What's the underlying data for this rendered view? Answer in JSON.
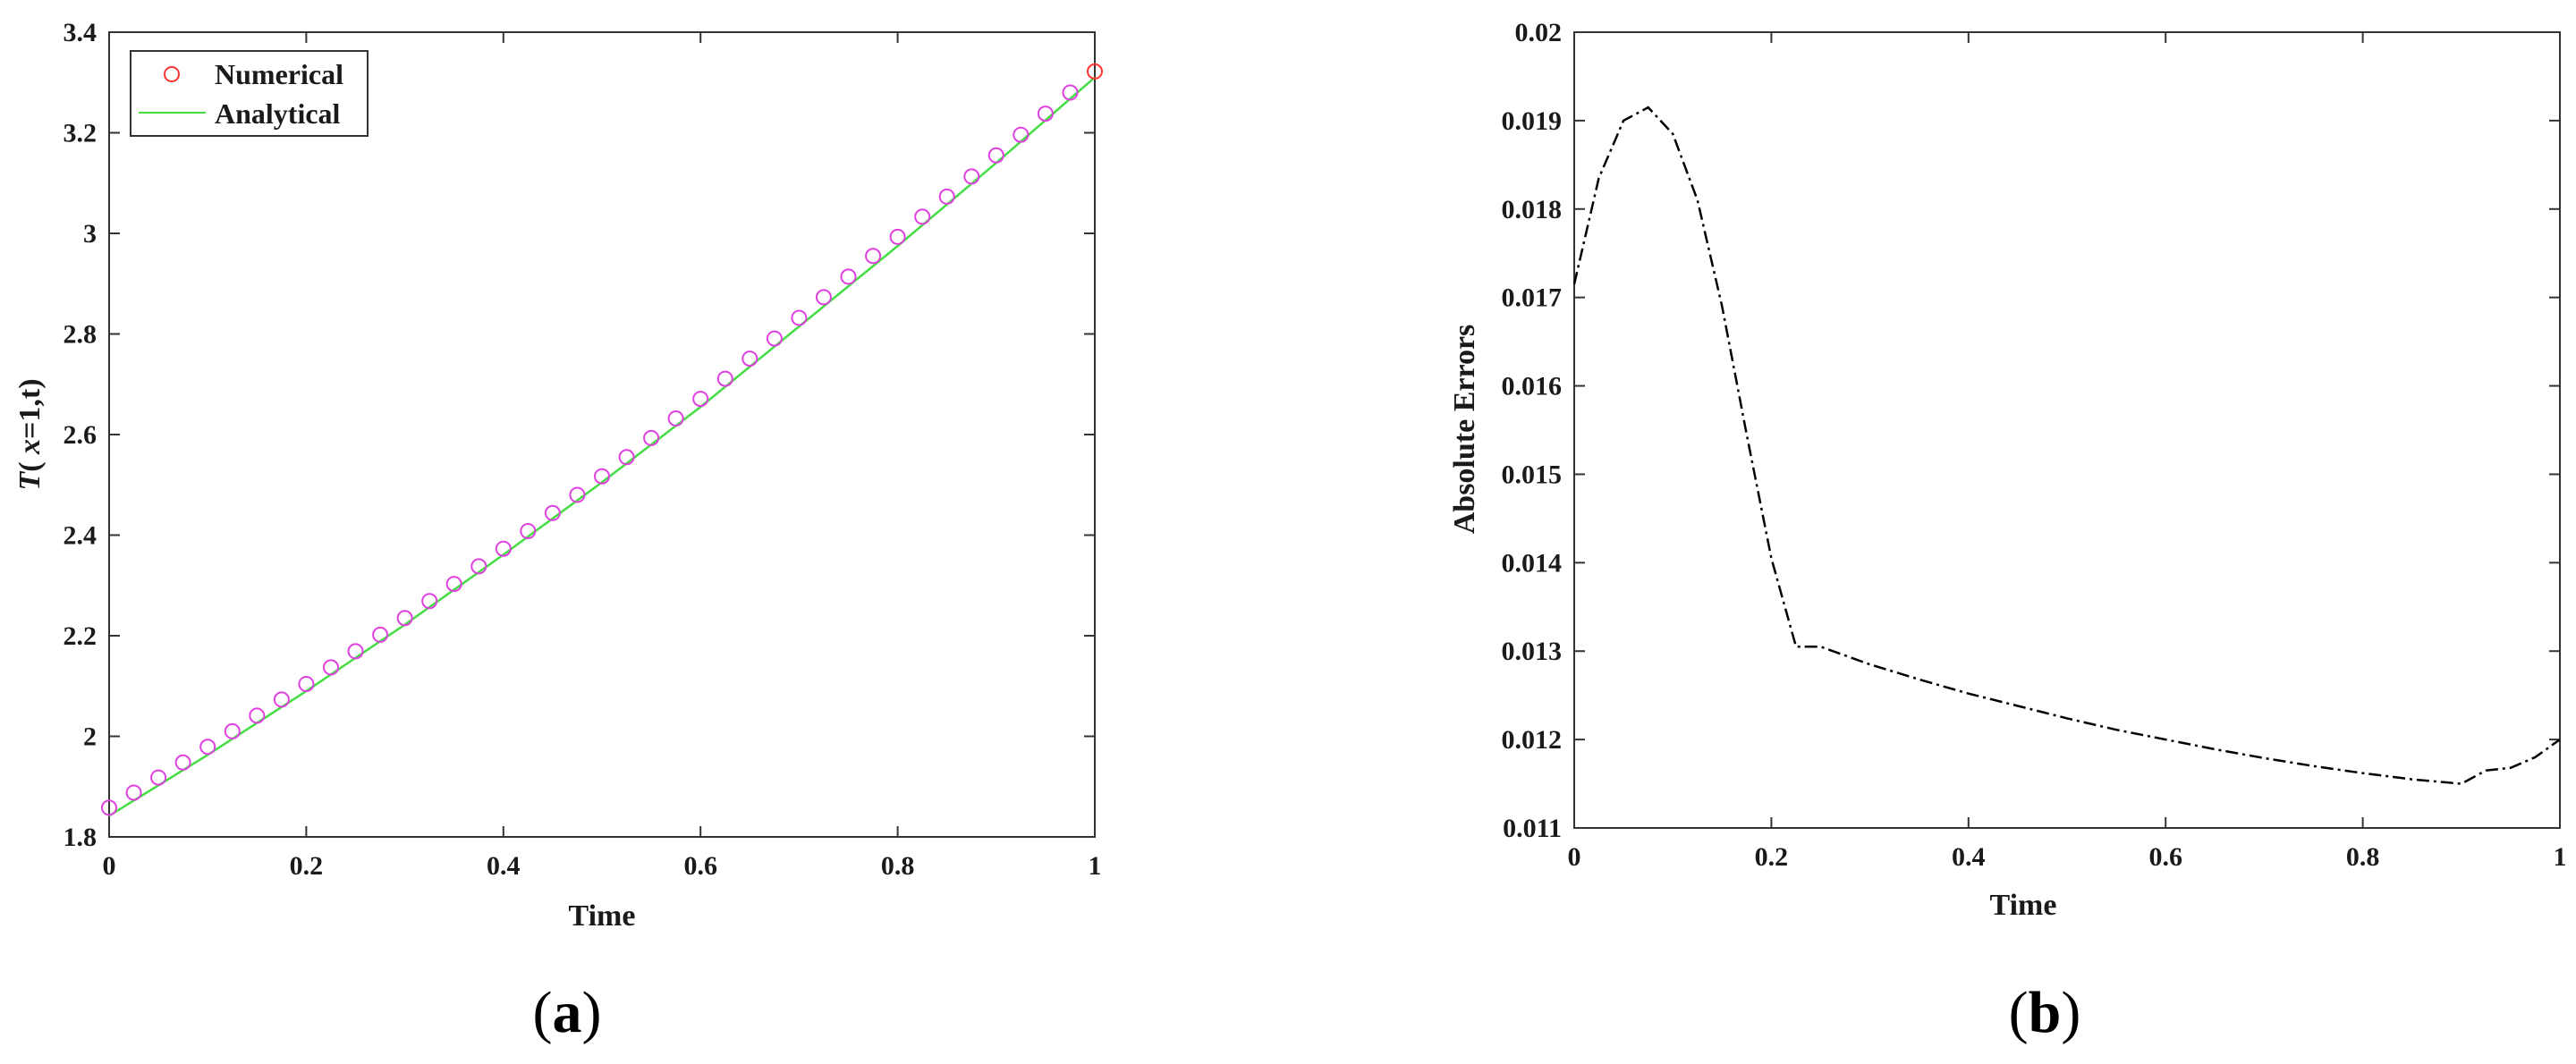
{
  "chart_data": [
    {
      "type": "line",
      "panel": "(a)",
      "panel_parts": [
        "(",
        "a",
        ")"
      ],
      "xlabel": "Time",
      "ylabel": {
        "italic": "T",
        "rest1": "( ",
        "italic2": "x",
        "rest2": "=1,t)"
      },
      "xlim": [
        0,
        1
      ],
      "ylim": [
        1.8,
        3.4
      ],
      "xticks": [
        0,
        0.2,
        0.4,
        0.6,
        0.8,
        1
      ],
      "xtick_labels": [
        "0",
        "0.2",
        "0.4",
        "0.6",
        "0.8",
        "1"
      ],
      "yticks": [
        1.8,
        2,
        2.2,
        2.4,
        2.6,
        2.8,
        3,
        3.2,
        3.4
      ],
      "ytick_labels": [
        "1.8",
        "2",
        "2.2",
        "2.4",
        "2.6",
        "2.8",
        "3",
        "3.2",
        "3.4"
      ],
      "grid": false,
      "legend": "top-left",
      "series": [
        {
          "name": "Numerical",
          "marker": "circle",
          "color": "#e040e0",
          "legend_color": "#ff3333",
          "x": [
            0,
            0.025,
            0.05,
            0.075,
            0.1,
            0.125,
            0.15,
            0.175,
            0.2,
            0.225,
            0.25,
            0.275,
            0.3,
            0.325,
            0.35,
            0.375,
            0.4,
            0.425,
            0.45,
            0.475,
            0.5,
            0.525,
            0.55,
            0.575,
            0.6,
            0.625,
            0.65,
            0.675,
            0.7,
            0.725,
            0.75,
            0.775,
            0.8,
            0.825,
            0.85,
            0.875,
            0.9,
            0.925,
            0.95,
            0.975,
            1
          ],
          "y": [
            1.858,
            1.888,
            1.918,
            1.948,
            1.979,
            2.01,
            2.041,
            2.073,
            2.104,
            2.137,
            2.169,
            2.202,
            2.235,
            2.269,
            2.303,
            2.338,
            2.373,
            2.408,
            2.444,
            2.48,
            2.517,
            2.555,
            2.593,
            2.632,
            2.671,
            2.711,
            2.751,
            2.791,
            2.832,
            2.873,
            2.914,
            2.955,
            2.993,
            3.033,
            3.073,
            3.113,
            3.155,
            3.196,
            3.238,
            3.28,
            3.322
          ]
        },
        {
          "name": "Analytical",
          "marker": "none",
          "color": "#44dd44",
          "x": [
            0,
            0.1,
            0.2,
            0.3,
            0.4,
            0.5,
            0.6,
            0.7,
            0.8,
            0.9,
            1
          ],
          "y": [
            1.842,
            1.963,
            2.09,
            2.222,
            2.361,
            2.505,
            2.655,
            2.815,
            2.975,
            3.14,
            3.31
          ]
        }
      ]
    },
    {
      "type": "line",
      "panel": "(b)",
      "panel_parts": [
        "(",
        "b",
        ")"
      ],
      "xlabel": "Time",
      "ylabel": "Absolute Errors",
      "xlim": [
        0,
        1
      ],
      "ylim": [
        0.011,
        0.02
      ],
      "xticks": [
        0,
        0.2,
        0.4,
        0.6,
        0.8,
        1
      ],
      "xtick_labels": [
        "0",
        "0.2",
        "0.4",
        "0.6",
        "0.8",
        "1"
      ],
      "yticks": [
        0.011,
        0.012,
        0.013,
        0.014,
        0.015,
        0.016,
        0.017,
        0.018,
        0.019,
        0.02
      ],
      "ytick_labels": [
        "0.011",
        "0.012",
        "0.013",
        "0.014",
        "0.015",
        "0.016",
        "0.017",
        "0.018",
        "0.019",
        "0.02"
      ],
      "grid": false,
      "series": [
        {
          "line_style": "dash-dot",
          "color": "#000000",
          "x": [
            0,
            0.025,
            0.05,
            0.075,
            0.1,
            0.125,
            0.15,
            0.175,
            0.2,
            0.225,
            0.25,
            0.3,
            0.35,
            0.4,
            0.45,
            0.5,
            0.55,
            0.6,
            0.65,
            0.7,
            0.75,
            0.8,
            0.85,
            0.9,
            0.925,
            0.95,
            0.975,
            1
          ],
          "y": [
            0.01715,
            0.01835,
            0.019,
            0.01915,
            0.01885,
            0.0181,
            0.0169,
            0.01545,
            0.01405,
            0.01305,
            0.01305,
            0.01285,
            0.01268,
            0.01252,
            0.01238,
            0.01224,
            0.01211,
            0.012,
            0.01189,
            0.01179,
            0.0117,
            0.01162,
            0.01155,
            0.0115,
            0.01165,
            0.01168,
            0.0118,
            0.012
          ]
        }
      ]
    }
  ]
}
